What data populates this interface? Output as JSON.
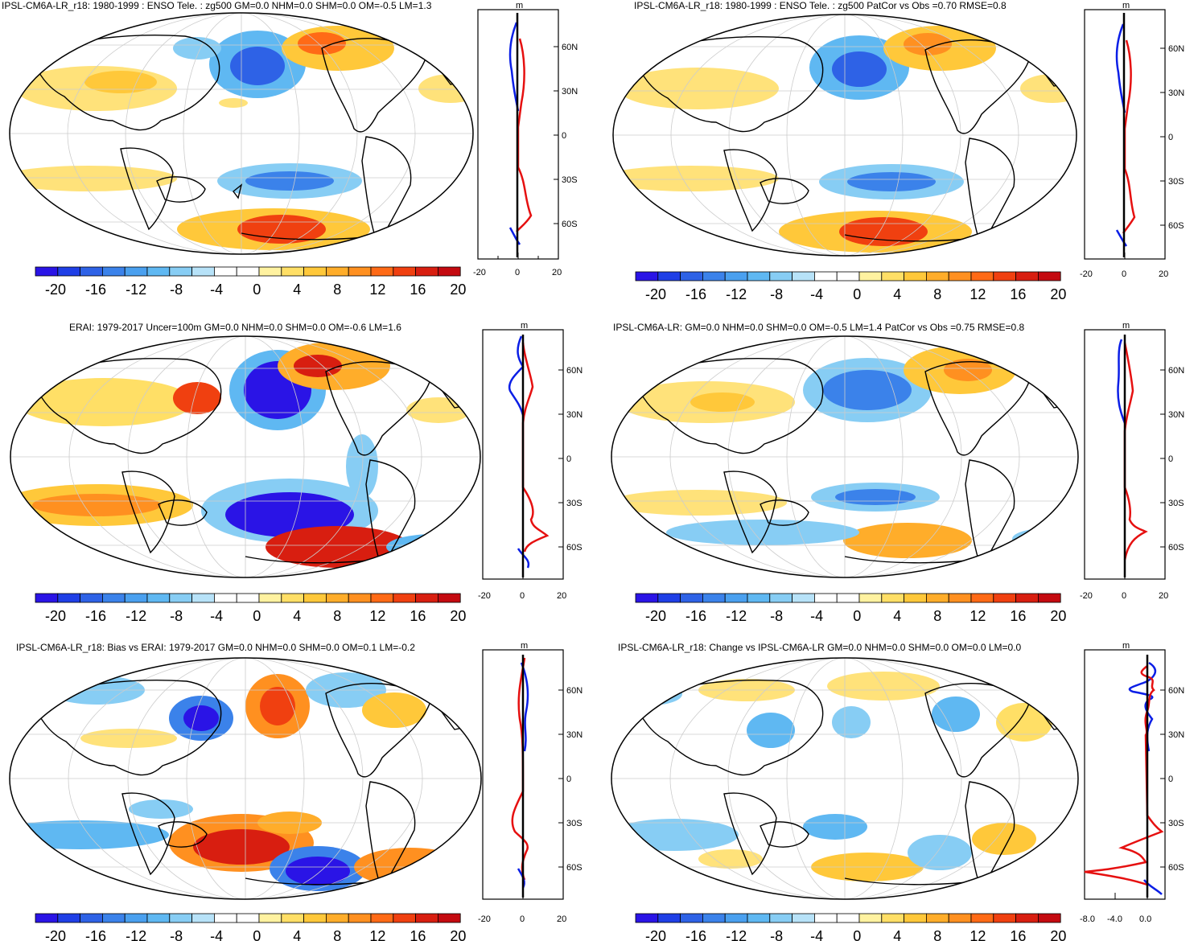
{
  "colorbar": {
    "colors": [
      "#2a14e6",
      "#1f3fe6",
      "#2e62e6",
      "#3b82ea",
      "#4aa0ef",
      "#5fb8f2",
      "#87cdf4",
      "#b7e2f8",
      "#ffffff",
      "#ffffff",
      "#fff2a0",
      "#ffdf66",
      "#ffc83a",
      "#ffad2a",
      "#ff9020",
      "#ff6a16",
      "#f04010",
      "#d81e10",
      "#c40a10"
    ],
    "labels": [
      "-20",
      "-16",
      "-12",
      "-8",
      "-4",
      "0",
      "4",
      "8",
      "12",
      "16",
      "20"
    ]
  },
  "latitude_labels": [
    "60N",
    "30N",
    "0",
    "30S",
    "60S"
  ],
  "profile_unit": "m",
  "panels": [
    {
      "id": "p1",
      "title": "IPSL-CM6A-LR_r18: 1980-1999 : ENSO Tele. : zg500 GM=0.0 NHM=0.0 SHM=0.0 OM=-0.5 LM=1.3",
      "profile_ticks": [
        "-20",
        "0",
        "20"
      ]
    },
    {
      "id": "p2",
      "title": "IPSL-CM6A-LR_r18: 1980-1999 : ENSO Tele. : zg500 PatCor vs Obs =0.70 RMSE=0.8",
      "profile_ticks": [
        "-20",
        "0",
        "20"
      ]
    },
    {
      "id": "p3",
      "title": "ERAI: 1979-2017 Uncer=100m GM=0.0 NHM=0.0 SHM=0.0 OM=-0.6 LM=1.6",
      "profile_ticks": [
        "-20",
        "0",
        "20"
      ]
    },
    {
      "id": "p4",
      "title": "IPSL-CM6A-LR: GM=0.0 NHM=0.0 SHM=0.0 OM=-0.5 LM=1.4 PatCor vs Obs =0.75 RMSE=0.8",
      "profile_ticks": [
        "-20",
        "0",
        "20"
      ]
    },
    {
      "id": "p5",
      "title": "IPSL-CM6A-LR_r18: Bias vs ERAI: 1979-2017 GM=0.0 NHM=0.0 SHM=0.0 OM=0.1 LM=-0.2",
      "profile_ticks": [
        "-20",
        "0",
        "20"
      ]
    },
    {
      "id": "p6",
      "title": "IPSL-CM6A-LR_r18: Change vs IPSL-CM6A-LR GM=0.0 NHM=0.0 SHM=0.0 OM=0.0 LM=0.0",
      "profile_ticks": [
        "-8.0",
        "-4.0",
        "0.0"
      ]
    }
  ]
}
